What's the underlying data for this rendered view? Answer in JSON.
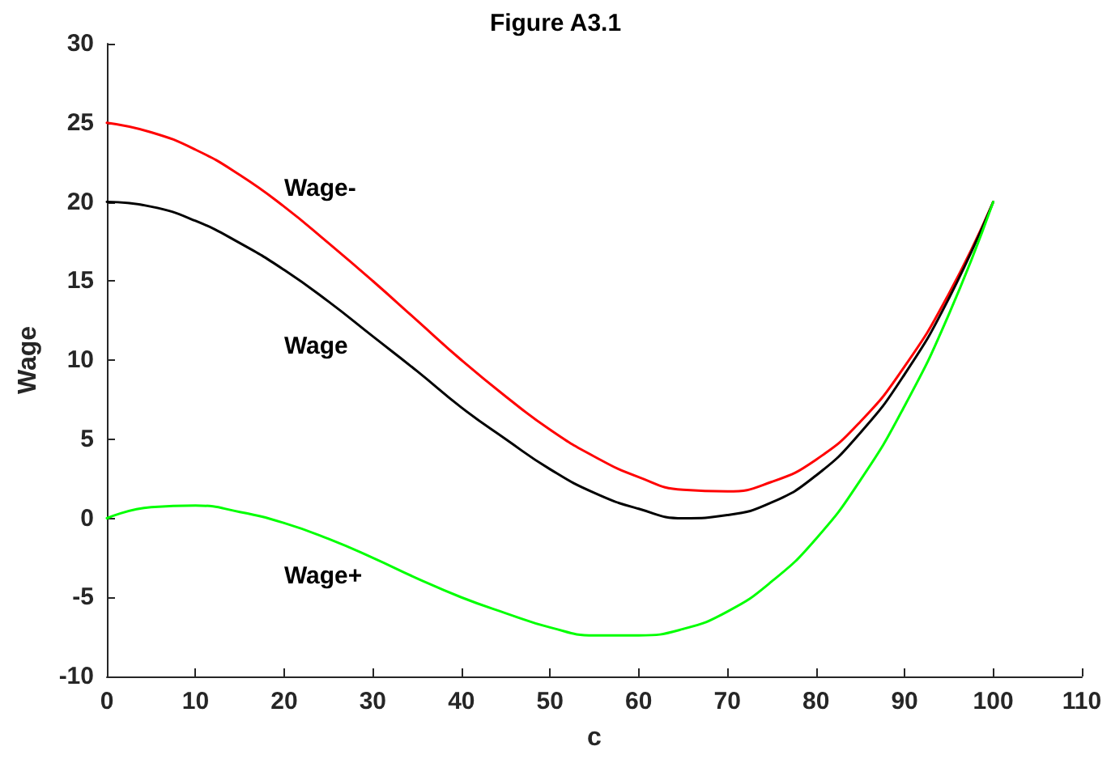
{
  "chart_data": {
    "type": "line",
    "title": "Figure A3.1",
    "xlabel": "c",
    "ylabel": "Wage",
    "x": [
      0,
      5,
      10,
      15,
      20,
      25,
      30,
      35,
      40,
      45,
      50,
      55,
      60,
      65,
      70,
      75,
      80,
      85,
      90,
      95,
      100
    ],
    "series": [
      {
        "name": "Wage-",
        "color": "#ff0000",
        "values": [
          25,
          24.4,
          23.3,
          21.7,
          19.7,
          17.4,
          15.0,
          12.5,
          10.0,
          7.7,
          5.6,
          3.9,
          2.6,
          1.8,
          1.7,
          2.3,
          3.7,
          6.1,
          9.6,
          14.2,
          20
        ]
      },
      {
        "name": "Wage",
        "color": "#000000",
        "values": [
          20,
          19.7,
          18.8,
          17.4,
          15.7,
          13.7,
          11.5,
          9.3,
          7.0,
          5.0,
          3.1,
          1.6,
          0.6,
          0.0,
          0.2,
          1.0,
          2.7,
          5.4,
          9.1,
          13.9,
          20
        ]
      },
      {
        "name": "Wage+",
        "color": "#00ff00",
        "values": [
          0,
          0.7,
          0.8,
          0.4,
          -0.3,
          -1.3,
          -2.5,
          -3.8,
          -5.0,
          -6.0,
          -6.9,
          -7.4,
          -7.4,
          -7.0,
          -5.9,
          -4.0,
          -1.3,
          2.4,
          7.1,
          12.9,
          20
        ]
      }
    ],
    "xlim": [
      0,
      110
    ],
    "xticks": [
      0,
      10,
      20,
      30,
      40,
      50,
      60,
      70,
      80,
      90,
      100,
      110
    ],
    "ylim": [
      -10,
      30
    ],
    "yticks": [
      -10,
      -5,
      0,
      5,
      10,
      15,
      20,
      25,
      30
    ],
    "grid": false,
    "marker": "none",
    "line_style": "solid"
  }
}
